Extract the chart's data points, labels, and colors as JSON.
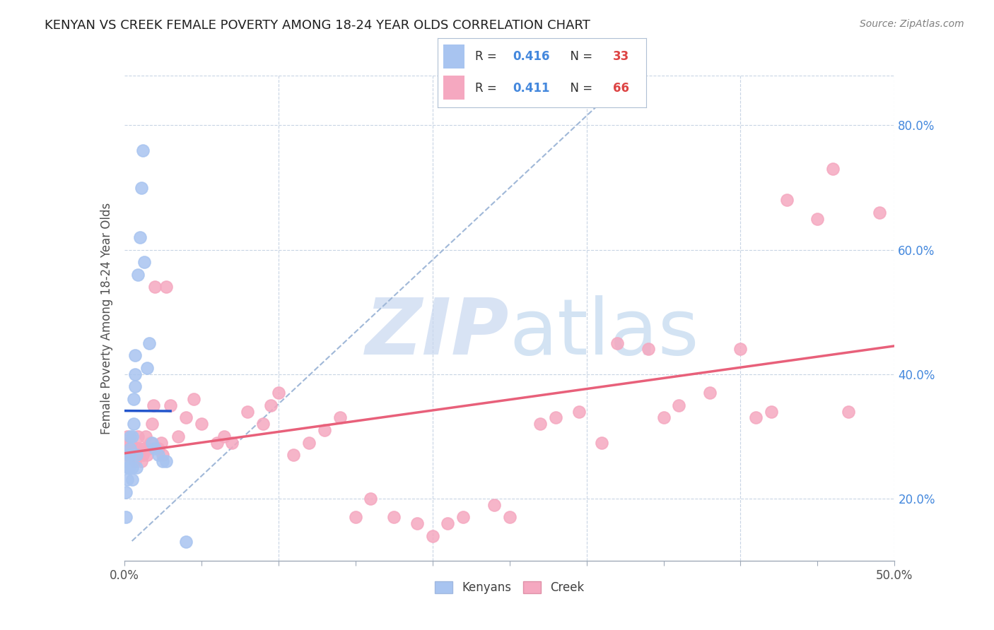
{
  "title": "KENYAN VS CREEK FEMALE POVERTY AMONG 18-24 YEAR OLDS CORRELATION CHART",
  "source": "Source: ZipAtlas.com",
  "ylabel": "Female Poverty Among 18-24 Year Olds",
  "kenyan_R": "0.416",
  "kenyan_N": "33",
  "creek_R": "0.411",
  "creek_N": "66",
  "kenyan_color": "#a8c4f0",
  "creek_color": "#f5a8c0",
  "kenyan_line_color": "#2255cc",
  "creek_line_color": "#e8607a",
  "dashed_line_color": "#a0b8d8",
  "watermark_color": "#c8d8f0",
  "xlim": [
    0.0,
    0.5
  ],
  "ylim": [
    0.1,
    0.88
  ],
  "kenyan_x": [
    0.001,
    0.001,
    0.002,
    0.002,
    0.003,
    0.003,
    0.003,
    0.004,
    0.004,
    0.004,
    0.005,
    0.005,
    0.005,
    0.006,
    0.006,
    0.007,
    0.007,
    0.007,
    0.008,
    0.008,
    0.009,
    0.01,
    0.011,
    0.012,
    0.013,
    0.015,
    0.016,
    0.018,
    0.02,
    0.022,
    0.025,
    0.027,
    0.04
  ],
  "kenyan_y": [
    0.17,
    0.21,
    0.23,
    0.25,
    0.25,
    0.26,
    0.27,
    0.27,
    0.28,
    0.3,
    0.23,
    0.25,
    0.3,
    0.32,
    0.36,
    0.38,
    0.4,
    0.43,
    0.25,
    0.27,
    0.56,
    0.62,
    0.7,
    0.76,
    0.58,
    0.41,
    0.45,
    0.29,
    0.28,
    0.27,
    0.26,
    0.26,
    0.13
  ],
  "creek_x": [
    0.001,
    0.002,
    0.003,
    0.004,
    0.005,
    0.006,
    0.007,
    0.008,
    0.009,
    0.01,
    0.011,
    0.012,
    0.013,
    0.014,
    0.015,
    0.016,
    0.017,
    0.018,
    0.019,
    0.02,
    0.022,
    0.024,
    0.025,
    0.027,
    0.03,
    0.035,
    0.04,
    0.045,
    0.05,
    0.06,
    0.065,
    0.07,
    0.08,
    0.09,
    0.095,
    0.1,
    0.11,
    0.12,
    0.13,
    0.14,
    0.15,
    0.16,
    0.175,
    0.19,
    0.2,
    0.21,
    0.22,
    0.24,
    0.25,
    0.27,
    0.28,
    0.295,
    0.31,
    0.32,
    0.34,
    0.35,
    0.36,
    0.38,
    0.4,
    0.41,
    0.42,
    0.43,
    0.45,
    0.46,
    0.47,
    0.49
  ],
  "creek_y": [
    0.27,
    0.3,
    0.28,
    0.29,
    0.27,
    0.27,
    0.26,
    0.28,
    0.3,
    0.28,
    0.26,
    0.27,
    0.28,
    0.3,
    0.27,
    0.28,
    0.29,
    0.32,
    0.35,
    0.54,
    0.28,
    0.29,
    0.27,
    0.54,
    0.35,
    0.3,
    0.33,
    0.36,
    0.32,
    0.29,
    0.3,
    0.29,
    0.34,
    0.32,
    0.35,
    0.37,
    0.27,
    0.29,
    0.31,
    0.33,
    0.17,
    0.2,
    0.17,
    0.16,
    0.14,
    0.16,
    0.17,
    0.19,
    0.17,
    0.32,
    0.33,
    0.34,
    0.29,
    0.45,
    0.44,
    0.33,
    0.35,
    0.37,
    0.44,
    0.33,
    0.34,
    0.68,
    0.65,
    0.73,
    0.34,
    0.66
  ]
}
